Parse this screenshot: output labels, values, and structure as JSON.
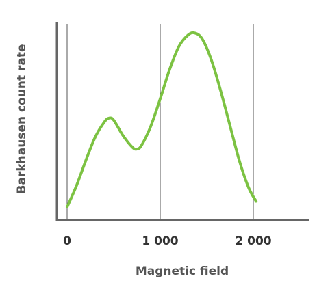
{
  "chart_data": {
    "type": "line",
    "title": "",
    "xlabel": "Magnetic field",
    "ylabel": "Barkhausen count rate",
    "xlim": [
      0,
      2600
    ],
    "ylim": [
      0,
      1
    ],
    "x_ticks": [
      {
        "value": 0,
        "label": "0"
      },
      {
        "value": 1000,
        "label": "1 000"
      },
      {
        "value": 2000,
        "label": "2 000"
      }
    ],
    "y_ticks_shown": false,
    "grid": "vertical lines at x ticks",
    "series": [
      {
        "color": "#7cc242",
        "x": [
          0,
          100,
          200,
          300,
          400,
          450,
          500,
          600,
          700,
          750,
          800,
          900,
          1000,
          1100,
          1200,
          1300,
          1370,
          1450,
          1550,
          1650,
          1750,
          1850,
          1950,
          2030
        ],
        "y": [
          0.06,
          0.17,
          0.3,
          0.42,
          0.5,
          0.52,
          0.51,
          0.43,
          0.37,
          0.36,
          0.38,
          0.48,
          0.62,
          0.77,
          0.89,
          0.95,
          0.96,
          0.93,
          0.82,
          0.66,
          0.48,
          0.3,
          0.16,
          0.09
        ]
      }
    ]
  }
}
